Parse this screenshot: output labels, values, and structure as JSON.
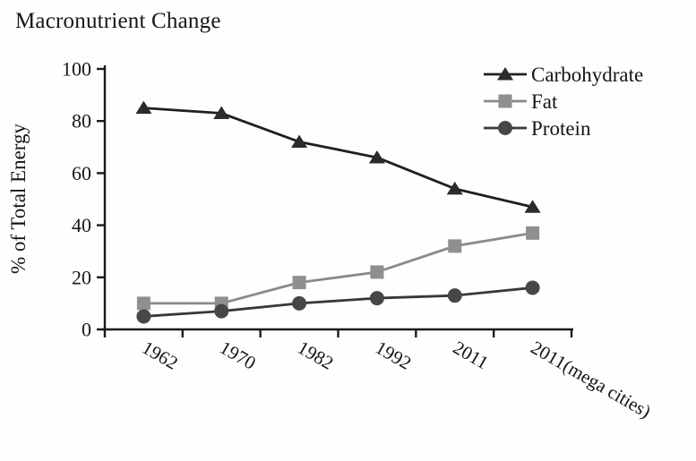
{
  "title": "Macronutrient Change",
  "chart_data": {
    "type": "line",
    "title": "Macronutrient Change",
    "xlabel": "",
    "ylabel": "% of Total Energy",
    "ylim": [
      0,
      100
    ],
    "yticks": [
      0,
      20,
      40,
      60,
      80,
      100
    ],
    "grid": false,
    "legend_position": "top-right-inside",
    "categories": [
      "1962",
      "1970",
      "1982",
      "1992",
      "2011",
      "2011(mega cities)"
    ],
    "series": [
      {
        "name": "Carbohydrate",
        "marker": "triangle",
        "marker_color": "#2b2b2b",
        "line_color": "#1f1f1f",
        "values": [
          85,
          83,
          72,
          66,
          54,
          47
        ]
      },
      {
        "name": "Fat",
        "marker": "square",
        "marker_color": "#8f8f8f",
        "line_color": "#8a8a8a",
        "values": [
          10,
          10,
          18,
          22,
          32,
          37
        ]
      },
      {
        "name": "Protein",
        "marker": "circle",
        "marker_color": "#474747",
        "line_color": "#383838",
        "values": [
          5,
          7,
          10,
          12,
          13,
          16
        ]
      }
    ],
    "axis_color": "#1a1a1a"
  }
}
